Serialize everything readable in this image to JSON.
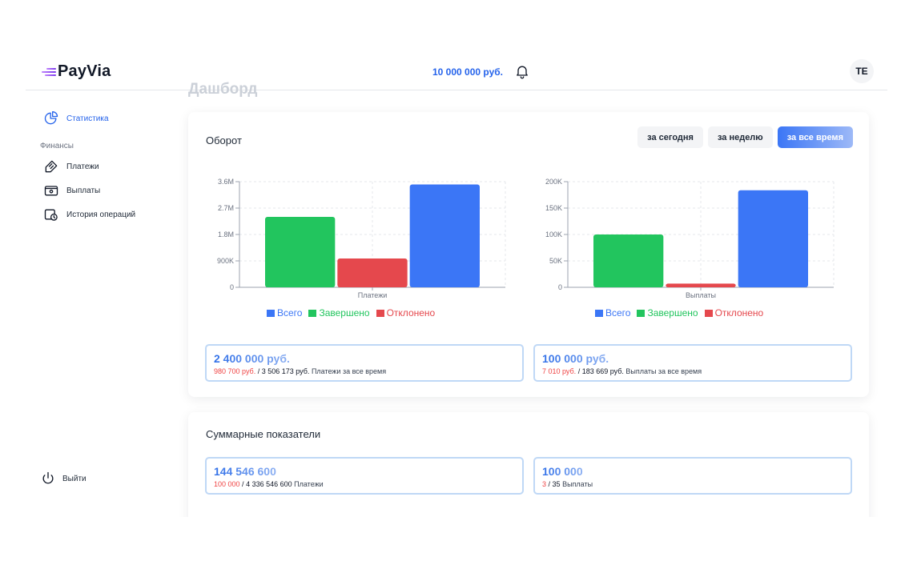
{
  "brand": {
    "name": "PayVia"
  },
  "header": {
    "balance": "10 000 000 руб.",
    "avatar_initials": "TE"
  },
  "sidebar": {
    "stats_label": "Статистика",
    "section_finance": "Финансы",
    "items": [
      {
        "label": "Платежи",
        "icon": "receipt-icon"
      },
      {
        "label": "Выплаты",
        "icon": "wallet-icon"
      },
      {
        "label": "История операций",
        "icon": "history-icon"
      }
    ],
    "logout_label": "Выйти"
  },
  "page_title": "Дашборд",
  "turnover": {
    "title": "Оборот",
    "filters": [
      "за сегодня",
      "за неделю",
      "за все время"
    ],
    "active_filter": "за все время",
    "stats": [
      {
        "total": "2 400 000 руб.",
        "rejected": "980 700 руб.",
        "sum": "3 506 173 руб.",
        "caption": "Платежи за все время"
      },
      {
        "total": "100 000 руб.",
        "rejected": "7 010 руб.",
        "sum": "183 669 руб.",
        "caption": "Выплаты за все время"
      }
    ]
  },
  "summary": {
    "title": "Суммарные показатели",
    "stats": [
      {
        "total": "144 546 600",
        "rejected": "100 000",
        "sum": "4 336 546 600",
        "caption": "Платежи"
      },
      {
        "total": "100 000",
        "rejected": "3",
        "sum": "35",
        "caption": "Выплаты"
      }
    ]
  },
  "colors": {
    "accent": "#2563eb",
    "total": "#3b76f6",
    "completed": "#22c55e",
    "rejected": "#e5484d"
  },
  "chart_data": [
    {
      "type": "bar",
      "categories": [
        "Платежи"
      ],
      "series": [
        {
          "name": "Завершено",
          "values": [
            2400000
          ]
        },
        {
          "name": "Отклонено",
          "values": [
            980700
          ]
        },
        {
          "name": "Всего",
          "values": [
            3506173
          ]
        }
      ],
      "legend": [
        "Всего",
        "Завершено",
        "Отклонено"
      ],
      "yticks": [
        0,
        900000,
        1800000,
        2700000,
        3600000
      ],
      "ytick_labels": [
        "0",
        "900K",
        "1.8M",
        "2.7M",
        "3.6M"
      ],
      "ylim": [
        0,
        3600000
      ],
      "grid": true,
      "legend_position": "bottom"
    },
    {
      "type": "bar",
      "categories": [
        "Выплаты"
      ],
      "series": [
        {
          "name": "Завершено",
          "values": [
            100000
          ]
        },
        {
          "name": "Отклонено",
          "values": [
            7010
          ]
        },
        {
          "name": "Всего",
          "values": [
            183669
          ]
        }
      ],
      "legend": [
        "Всего",
        "Завершено",
        "Отклонено"
      ],
      "yticks": [
        0,
        50000,
        100000,
        150000,
        200000
      ],
      "ytick_labels": [
        "0",
        "50K",
        "100K",
        "150K",
        "200K"
      ],
      "ylim": [
        0,
        200000
      ],
      "grid": true,
      "legend_position": "bottom"
    }
  ]
}
